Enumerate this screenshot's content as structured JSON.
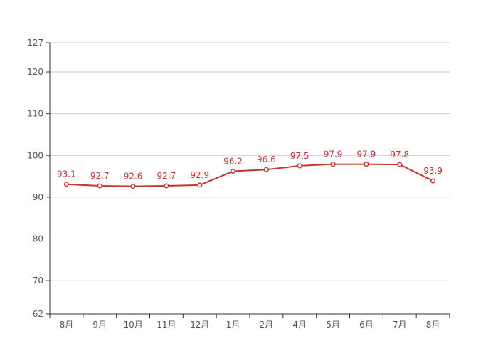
{
  "chart_data": {
    "type": "line",
    "title": "",
    "xlabel": "",
    "ylabel": "",
    "categories": [
      "8月",
      "9月",
      "10月",
      "11月",
      "12月",
      "1月",
      "2月",
      "4月",
      "5月",
      "6月",
      "7月",
      "8月"
    ],
    "series": [
      {
        "name": "",
        "values": [
          93.1,
          92.7,
          92.6,
          92.7,
          92.9,
          96.2,
          96.6,
          97.5,
          97.9,
          97.9,
          97.8,
          93.9
        ]
      }
    ],
    "data_labels": [
      "93.1",
      "92.7",
      "92.6",
      "92.7",
      "92.9",
      "96.2",
      "96.6",
      "97.5",
      "97.9",
      "97.9",
      "97.8",
      "93.9"
    ],
    "ylim": [
      62,
      127
    ],
    "yticks": [
      62,
      70,
      80,
      90,
      100,
      110,
      120,
      127
    ],
    "grid": true,
    "legend": false,
    "marker": "open-circle",
    "colors": {
      "line": "#c23531",
      "marker_fill": "#ffffff",
      "data_label": "#c23531",
      "axis": "#333333",
      "gridline": "#cccccc",
      "tick_text": "#555555",
      "background": "#ffffff"
    }
  }
}
